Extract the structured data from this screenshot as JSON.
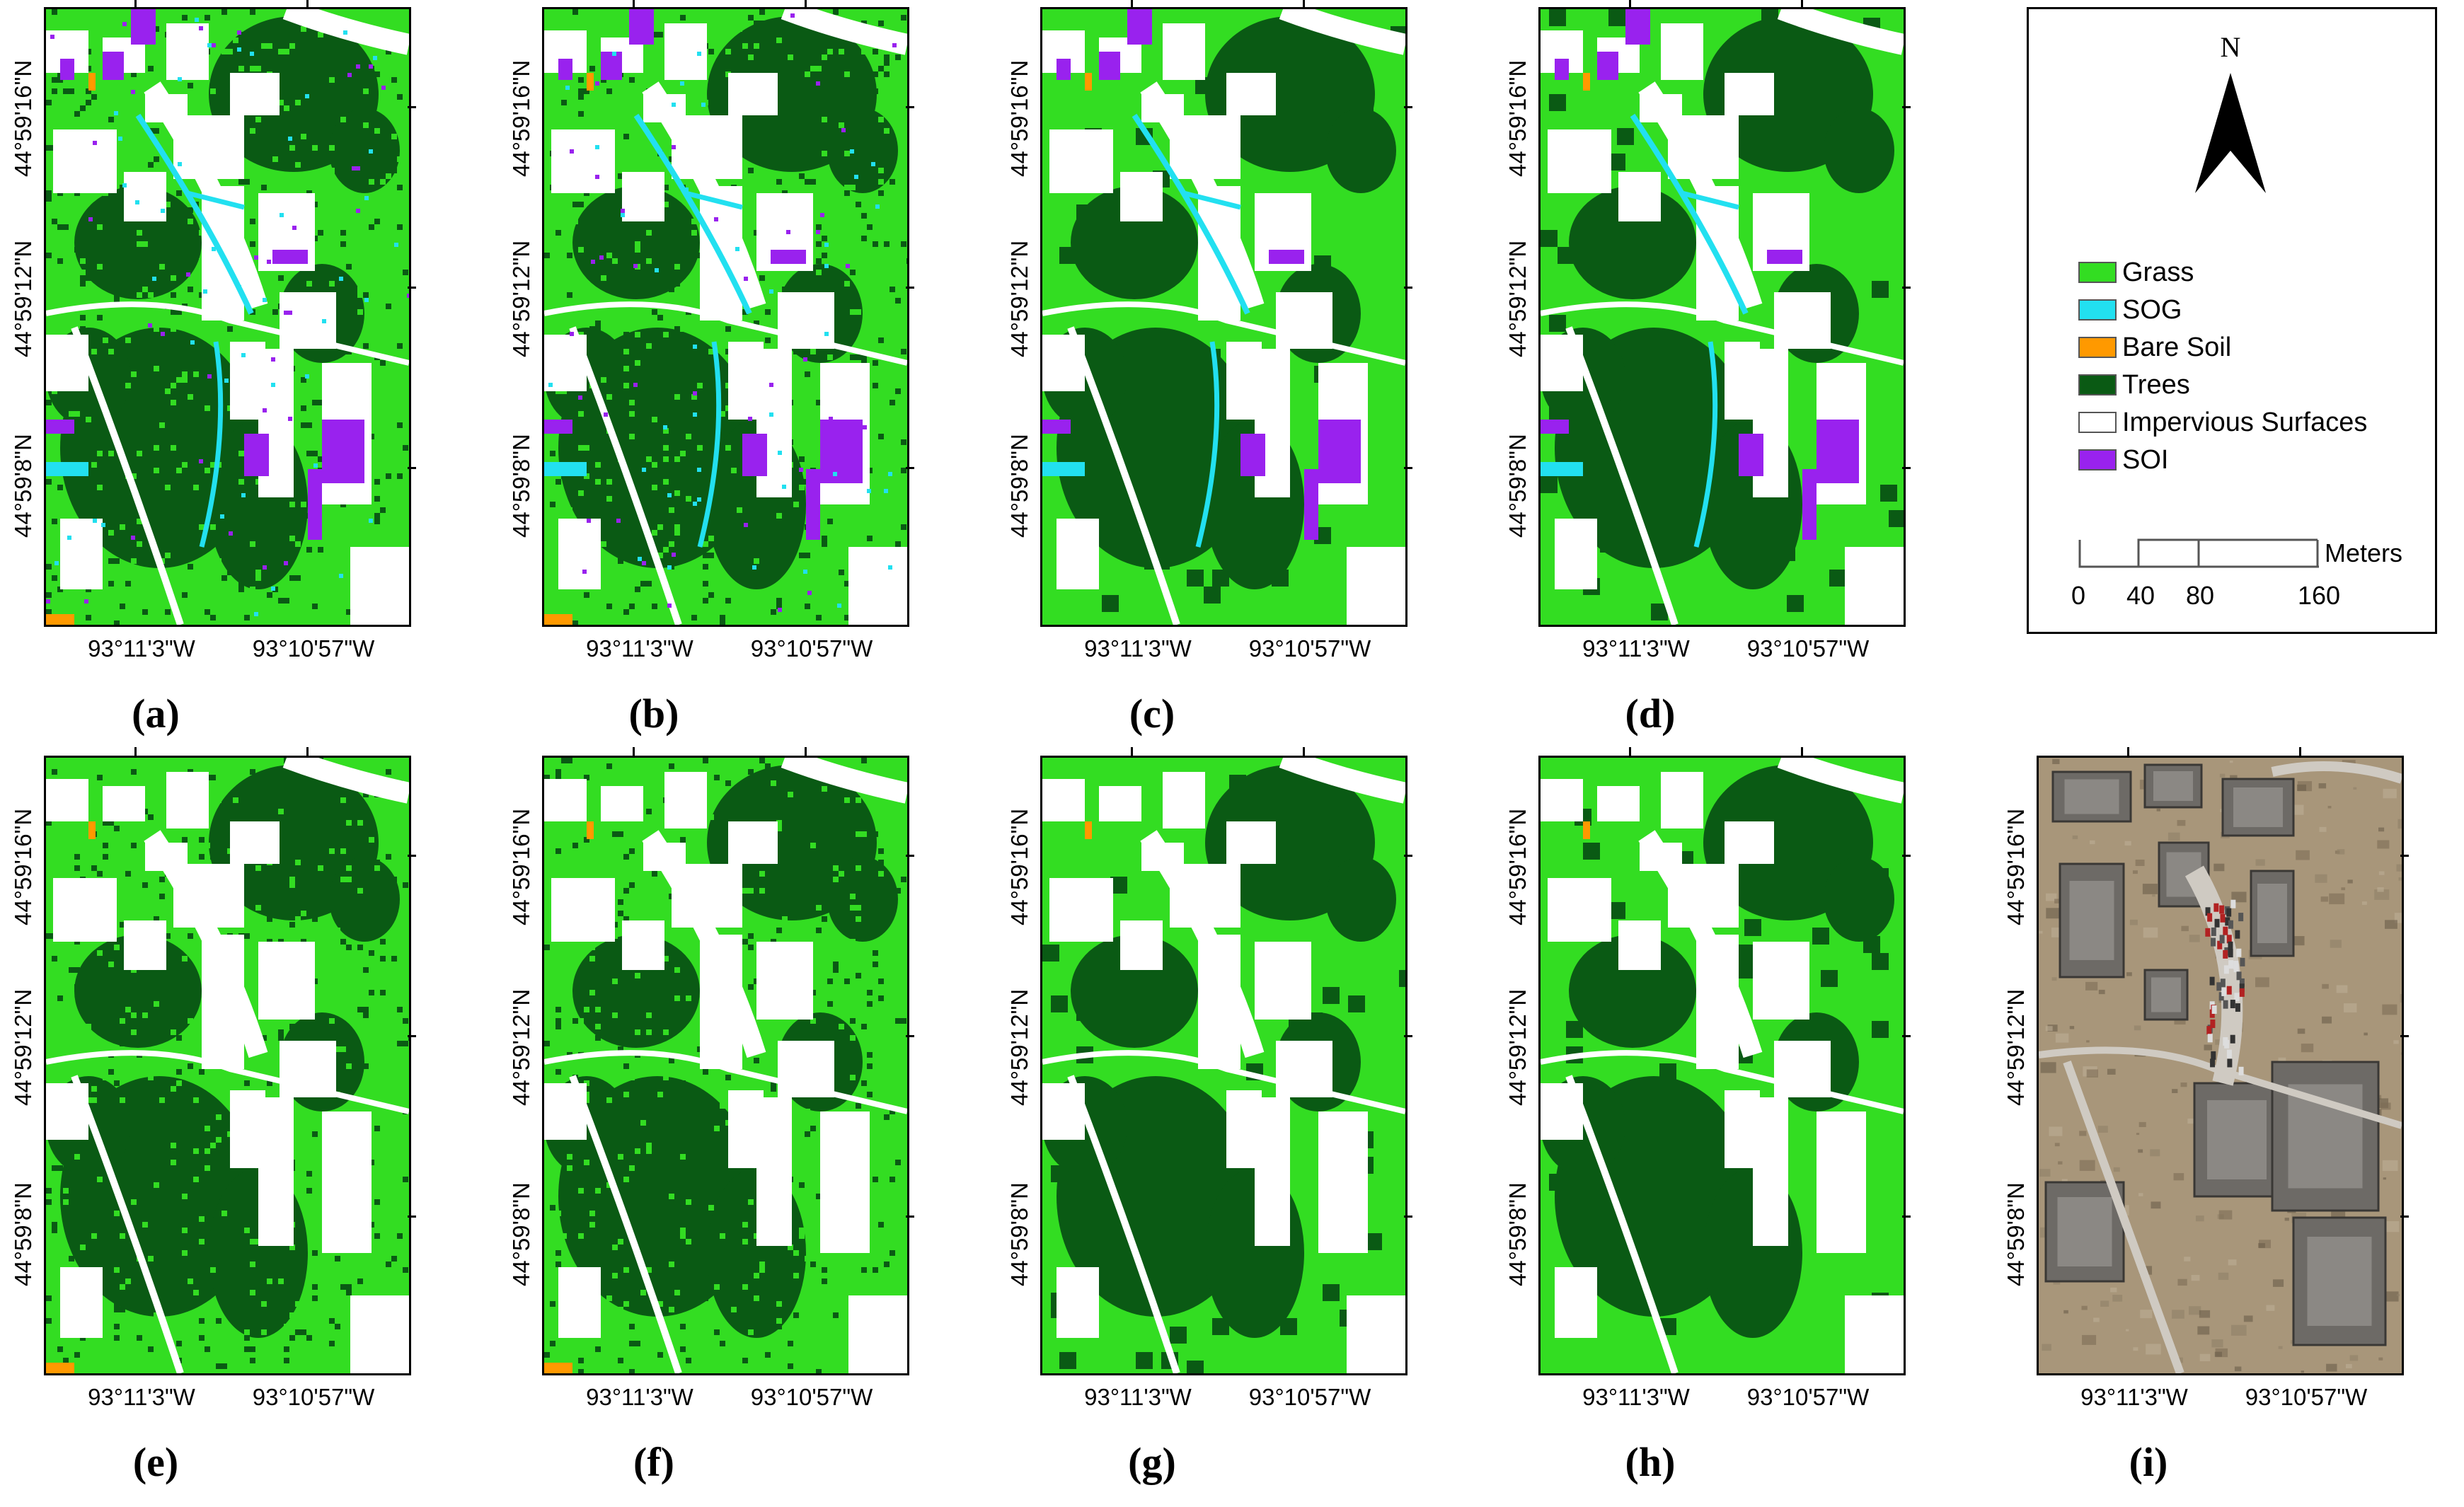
{
  "colors": {
    "grass": "#33dd22",
    "sog": "#22e0f0",
    "bare_soil": "#ff9900",
    "trees": "#0a5a14",
    "impervious": "#ffffff",
    "soi": "#9922ee"
  },
  "axes": {
    "y_labels": [
      "44°59'16\"N",
      "44°59'12\"N",
      "44°59'8\"N"
    ],
    "x_labels": [
      "93°11'3\"W",
      "93°10'57\"W"
    ]
  },
  "panels": [
    {
      "label": "(a)",
      "variant": "full"
    },
    {
      "label": "(b)",
      "variant": "full"
    },
    {
      "label": "(c)",
      "variant": "smooth"
    },
    {
      "label": "(d)",
      "variant": "smooth"
    },
    {
      "label": "(e)",
      "variant": "noshadow"
    },
    {
      "label": "(f)",
      "variant": "noshadow"
    },
    {
      "label": "(g)",
      "variant": "smooth-noshadow"
    },
    {
      "label": "(h)",
      "variant": "smooth-noshadow"
    },
    {
      "label": "(i)",
      "variant": "aerial"
    }
  ],
  "legend": {
    "north": "N",
    "items": [
      {
        "label": "Grass",
        "color": "#33dd22"
      },
      {
        "label": "SOG",
        "color": "#22e0f0"
      },
      {
        "label": "Bare Soil",
        "color": "#ff9900"
      },
      {
        "label": "Trees",
        "color": "#0a5a14"
      },
      {
        "label": "Impervious Surfaces",
        "color": "#ffffff"
      },
      {
        "label": "SOI",
        "color": "#9922ee"
      }
    ],
    "scale_unit": "Meters",
    "scale_ticks": [
      "0",
      "40",
      "80",
      "160"
    ]
  }
}
